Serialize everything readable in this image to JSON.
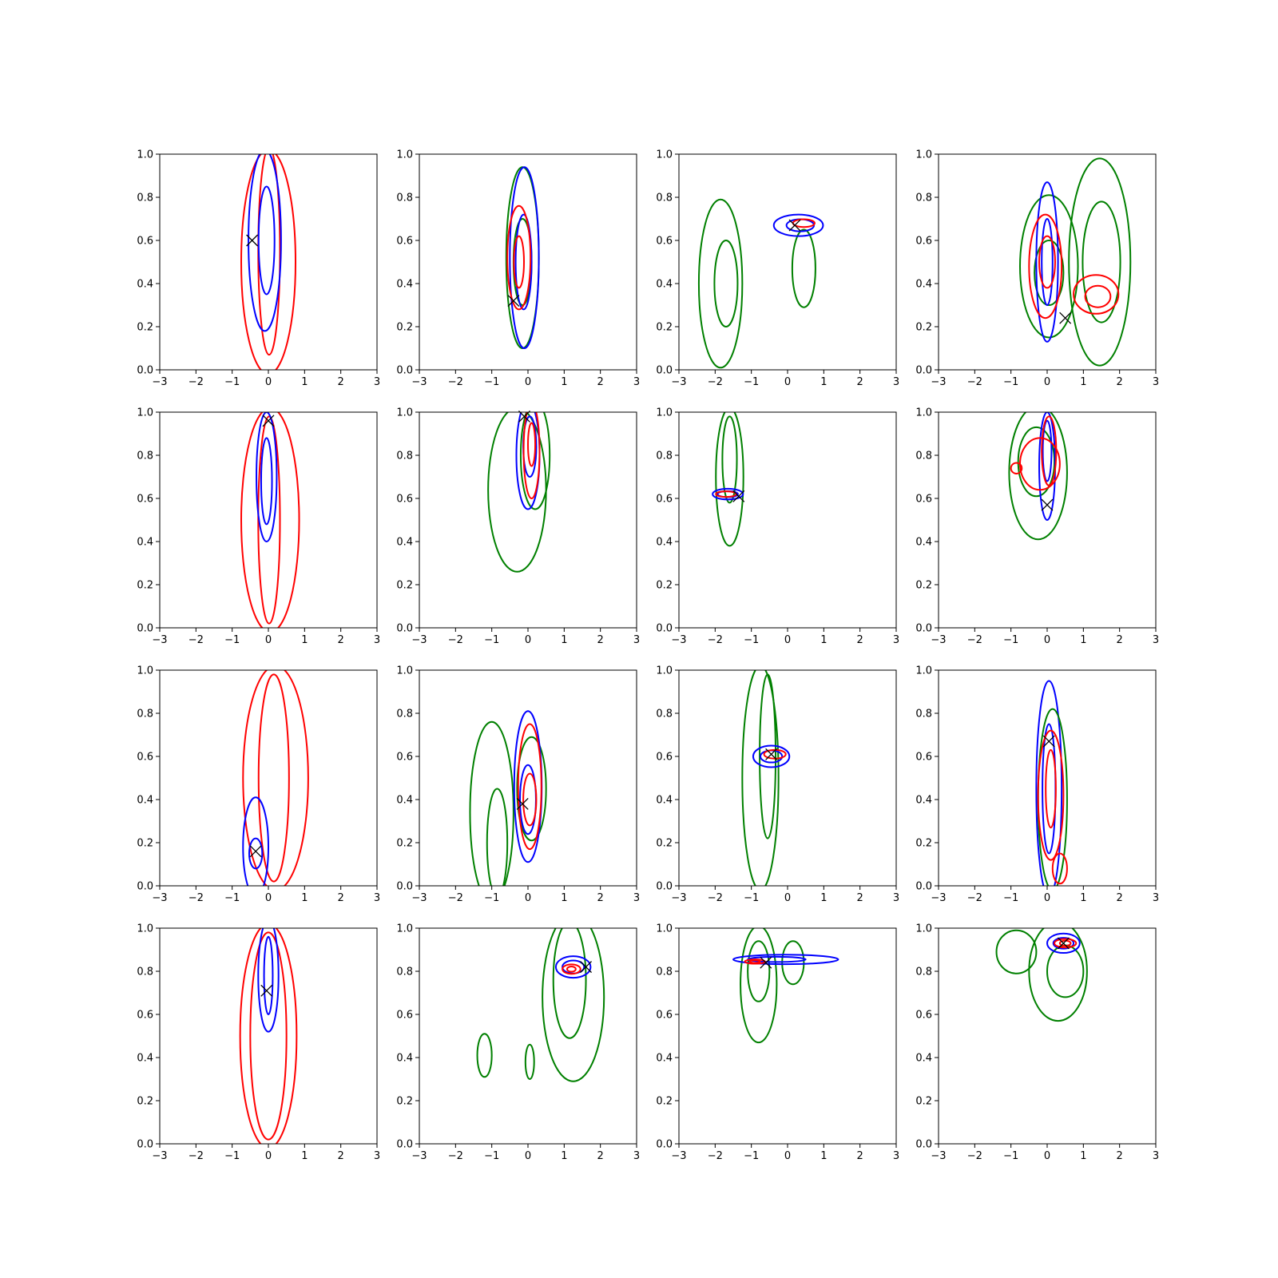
{
  "figure": {
    "rows": 4,
    "cols": 4,
    "colors": {
      "red": "#ff0000",
      "blue": "#0000ff",
      "green": "#008000",
      "marker": "#000000"
    }
  },
  "chart_data": {
    "type": "contour",
    "grid": "off",
    "legend": "none",
    "xlim": [
      -3,
      3
    ],
    "ylim": [
      0,
      1
    ],
    "xticks": [
      "−3",
      "−2",
      "−1",
      "0",
      "1",
      "2",
      "3"
    ],
    "yticks": [
      "0.0",
      "0.2",
      "0.4",
      "0.6",
      "0.8",
      "1.0"
    ],
    "panels": [
      {
        "row": 1,
        "col": 1,
        "marker": [
          -0.45,
          0.6
        ],
        "contours": [
          {
            "color": "red",
            "cx": 0.0,
            "cy": 0.5,
            "rx": 0.75,
            "ry": 0.52
          },
          {
            "color": "red",
            "cx": 0.02,
            "cy": 0.55,
            "rx": 0.3,
            "ry": 0.48
          },
          {
            "color": "blue",
            "cx": -0.1,
            "cy": 0.6,
            "rx": 0.45,
            "ry": 0.42
          },
          {
            "color": "blue",
            "cx": -0.05,
            "cy": 0.6,
            "rx": 0.22,
            "ry": 0.25
          }
        ]
      },
      {
        "row": 1,
        "col": 2,
        "marker": [
          -0.4,
          0.32
        ],
        "contours": [
          {
            "color": "green",
            "cx": -0.15,
            "cy": 0.52,
            "rx": 0.45,
            "ry": 0.42
          },
          {
            "color": "green",
            "cx": -0.15,
            "cy": 0.5,
            "rx": 0.25,
            "ry": 0.2
          },
          {
            "color": "blue",
            "cx": -0.1,
            "cy": 0.52,
            "rx": 0.4,
            "ry": 0.42
          },
          {
            "color": "blue",
            "cx": -0.12,
            "cy": 0.5,
            "rx": 0.22,
            "ry": 0.22
          },
          {
            "color": "red",
            "cx": -0.25,
            "cy": 0.52,
            "rx": 0.32,
            "ry": 0.24
          },
          {
            "color": "red",
            "cx": -0.25,
            "cy": 0.5,
            "rx": 0.14,
            "ry": 0.12
          }
        ]
      },
      {
        "row": 1,
        "col": 3,
        "marker": [
          0.2,
          0.67
        ],
        "contours": [
          {
            "color": "green",
            "cx": -1.85,
            "cy": 0.4,
            "rx": 0.6,
            "ry": 0.39
          },
          {
            "color": "green",
            "cx": -1.7,
            "cy": 0.4,
            "rx": 0.32,
            "ry": 0.2
          },
          {
            "color": "green",
            "cx": 0.45,
            "cy": 0.47,
            "rx": 0.32,
            "ry": 0.18
          },
          {
            "color": "blue",
            "cx": 0.3,
            "cy": 0.67,
            "rx": 0.68,
            "ry": 0.05
          },
          {
            "color": "blue",
            "cx": 0.35,
            "cy": 0.67,
            "rx": 0.38,
            "ry": 0.028
          },
          {
            "color": "red",
            "cx": 0.45,
            "cy": 0.68,
            "rx": 0.3,
            "ry": 0.018
          }
        ]
      },
      {
        "row": 1,
        "col": 4,
        "marker": [
          0.5,
          0.24
        ],
        "contours": [
          {
            "color": "green",
            "cx": 0.05,
            "cy": 0.48,
            "rx": 0.8,
            "ry": 0.33
          },
          {
            "color": "green",
            "cx": 0.05,
            "cy": 0.45,
            "rx": 0.4,
            "ry": 0.15
          },
          {
            "color": "green",
            "cx": 1.45,
            "cy": 0.5,
            "rx": 0.85,
            "ry": 0.48
          },
          {
            "color": "green",
            "cx": 1.5,
            "cy": 0.5,
            "rx": 0.52,
            "ry": 0.28
          },
          {
            "color": "blue",
            "cx": 0.0,
            "cy": 0.5,
            "rx": 0.3,
            "ry": 0.37
          },
          {
            "color": "blue",
            "cx": 0.0,
            "cy": 0.5,
            "rx": 0.15,
            "ry": 0.2
          },
          {
            "color": "red",
            "cx": -0.05,
            "cy": 0.48,
            "rx": 0.45,
            "ry": 0.24
          },
          {
            "color": "red",
            "cx": 0.0,
            "cy": 0.5,
            "rx": 0.22,
            "ry": 0.12
          },
          {
            "color": "red",
            "cx": 1.35,
            "cy": 0.35,
            "rx": 0.62,
            "ry": 0.09
          },
          {
            "color": "red",
            "cx": 1.4,
            "cy": 0.34,
            "rx": 0.35,
            "ry": 0.05
          }
        ]
      },
      {
        "row": 2,
        "col": 1,
        "marker": [
          0.0,
          0.96
        ],
        "contours": [
          {
            "color": "red",
            "cx": 0.05,
            "cy": 0.5,
            "rx": 0.8,
            "ry": 0.52
          },
          {
            "color": "red",
            "cx": 0.02,
            "cy": 0.5,
            "rx": 0.3,
            "ry": 0.48
          },
          {
            "color": "blue",
            "cx": -0.05,
            "cy": 0.7,
            "rx": 0.28,
            "ry": 0.3
          },
          {
            "color": "blue",
            "cx": -0.05,
            "cy": 0.68,
            "rx": 0.15,
            "ry": 0.2
          }
        ]
      },
      {
        "row": 2,
        "col": 2,
        "marker": [
          -0.1,
          0.98
        ],
        "contours": [
          {
            "color": "green",
            "cx": -0.3,
            "cy": 0.64,
            "rx": 0.8,
            "ry": 0.38
          },
          {
            "color": "green",
            "cx": 0.2,
            "cy": 0.8,
            "rx": 0.4,
            "ry": 0.25
          },
          {
            "color": "blue",
            "cx": 0.0,
            "cy": 0.8,
            "rx": 0.32,
            "ry": 0.25
          },
          {
            "color": "blue",
            "cx": 0.05,
            "cy": 0.84,
            "rx": 0.18,
            "ry": 0.14
          },
          {
            "color": "red",
            "cx": 0.1,
            "cy": 0.82,
            "rx": 0.22,
            "ry": 0.22
          },
          {
            "color": "red",
            "cx": 0.1,
            "cy": 0.85,
            "rx": 0.1,
            "ry": 0.1
          }
        ]
      },
      {
        "row": 2,
        "col": 3,
        "marker": [
          -1.35,
          0.61
        ],
        "contours": [
          {
            "color": "green",
            "cx": -1.6,
            "cy": 0.7,
            "rx": 0.38,
            "ry": 0.32
          },
          {
            "color": "green",
            "cx": -1.6,
            "cy": 0.78,
            "rx": 0.2,
            "ry": 0.2
          },
          {
            "color": "blue",
            "cx": -1.65,
            "cy": 0.62,
            "rx": 0.42,
            "ry": 0.025
          },
          {
            "color": "blue",
            "cx": -1.65,
            "cy": 0.62,
            "rx": 0.28,
            "ry": 0.014
          },
          {
            "color": "red",
            "cx": -1.7,
            "cy": 0.62,
            "rx": 0.28,
            "ry": 0.013
          }
        ]
      },
      {
        "row": 2,
        "col": 4,
        "marker": [
          0.0,
          0.57
        ],
        "contours": [
          {
            "color": "green",
            "cx": -0.25,
            "cy": 0.72,
            "rx": 0.8,
            "ry": 0.31
          },
          {
            "color": "green",
            "cx": -0.3,
            "cy": 0.77,
            "rx": 0.5,
            "ry": 0.16
          },
          {
            "color": "blue",
            "cx": 0.0,
            "cy": 0.75,
            "rx": 0.22,
            "ry": 0.25
          },
          {
            "color": "blue",
            "cx": 0.0,
            "cy": 0.82,
            "rx": 0.12,
            "ry": 0.14
          },
          {
            "color": "red",
            "cx": -0.2,
            "cy": 0.76,
            "rx": 0.55,
            "ry": 0.12
          },
          {
            "color": "red",
            "cx": 0.05,
            "cy": 0.82,
            "rx": 0.2,
            "ry": 0.16
          },
          {
            "color": "red",
            "cx": -0.85,
            "cy": 0.74,
            "rx": 0.15,
            "ry": 0.025
          }
        ]
      },
      {
        "row": 3,
        "col": 1,
        "marker": [
          -0.35,
          0.16
        ],
        "contours": [
          {
            "color": "red",
            "cx": 0.2,
            "cy": 0.5,
            "rx": 0.9,
            "ry": 0.52
          },
          {
            "color": "red",
            "cx": 0.15,
            "cy": 0.5,
            "rx": 0.42,
            "ry": 0.48
          },
          {
            "color": "blue",
            "cx": -0.35,
            "cy": 0.18,
            "rx": 0.35,
            "ry": 0.23
          },
          {
            "color": "blue",
            "cx": -0.35,
            "cy": 0.15,
            "rx": 0.18,
            "ry": 0.07
          }
        ]
      },
      {
        "row": 3,
        "col": 2,
        "marker": [
          -0.15,
          0.38
        ],
        "contours": [
          {
            "color": "green",
            "cx": -1.0,
            "cy": 0.34,
            "rx": 0.6,
            "ry": 0.42
          },
          {
            "color": "green",
            "cx": -0.85,
            "cy": 0.2,
            "rx": 0.28,
            "ry": 0.25
          },
          {
            "color": "green",
            "cx": 0.1,
            "cy": 0.45,
            "rx": 0.4,
            "ry": 0.24
          },
          {
            "color": "blue",
            "cx": 0.0,
            "cy": 0.46,
            "rx": 0.38,
            "ry": 0.35
          },
          {
            "color": "blue",
            "cx": 0.0,
            "cy": 0.4,
            "rx": 0.22,
            "ry": 0.16
          },
          {
            "color": "red",
            "cx": 0.05,
            "cy": 0.46,
            "rx": 0.32,
            "ry": 0.29
          },
          {
            "color": "red",
            "cx": 0.05,
            "cy": 0.4,
            "rx": 0.18,
            "ry": 0.12
          }
        ]
      },
      {
        "row": 3,
        "col": 3,
        "marker": [
          -0.45,
          0.61
        ],
        "contours": [
          {
            "color": "green",
            "cx": -0.75,
            "cy": 0.5,
            "rx": 0.5,
            "ry": 0.52
          },
          {
            "color": "green",
            "cx": -0.55,
            "cy": 0.6,
            "rx": 0.22,
            "ry": 0.38
          },
          {
            "color": "blue",
            "cx": -0.45,
            "cy": 0.6,
            "rx": 0.5,
            "ry": 0.05
          },
          {
            "color": "blue",
            "cx": -0.45,
            "cy": 0.6,
            "rx": 0.3,
            "ry": 0.028
          },
          {
            "color": "red",
            "cx": -0.35,
            "cy": 0.61,
            "rx": 0.3,
            "ry": 0.02
          }
        ]
      },
      {
        "row": 3,
        "col": 4,
        "marker": [
          0.05,
          0.67
        ],
        "contours": [
          {
            "color": "blue",
            "cx": 0.05,
            "cy": 0.45,
            "rx": 0.35,
            "ry": 0.5
          },
          {
            "color": "blue",
            "cx": 0.05,
            "cy": 0.45,
            "rx": 0.18,
            "ry": 0.3
          },
          {
            "color": "green",
            "cx": 0.15,
            "cy": 0.4,
            "rx": 0.4,
            "ry": 0.42
          },
          {
            "color": "red",
            "cx": 0.1,
            "cy": 0.42,
            "rx": 0.35,
            "ry": 0.3
          },
          {
            "color": "red",
            "cx": 0.1,
            "cy": 0.45,
            "rx": 0.14,
            "ry": 0.18
          },
          {
            "color": "red",
            "cx": 0.35,
            "cy": 0.08,
            "rx": 0.2,
            "ry": 0.07
          }
        ]
      },
      {
        "row": 4,
        "col": 1,
        "marker": [
          -0.05,
          0.71
        ],
        "contours": [
          {
            "color": "red",
            "cx": 0.0,
            "cy": 0.5,
            "rx": 0.78,
            "ry": 0.52
          },
          {
            "color": "red",
            "cx": 0.0,
            "cy": 0.5,
            "rx": 0.5,
            "ry": 0.48
          },
          {
            "color": "blue",
            "cx": 0.0,
            "cy": 0.78,
            "rx": 0.28,
            "ry": 0.26
          },
          {
            "color": "blue",
            "cx": 0.0,
            "cy": 0.78,
            "rx": 0.12,
            "ry": 0.18
          }
        ]
      },
      {
        "row": 4,
        "col": 2,
        "marker": [
          1.6,
          0.82
        ],
        "contours": [
          {
            "color": "green",
            "cx": 1.25,
            "cy": 0.68,
            "rx": 0.85,
            "ry": 0.39
          },
          {
            "color": "green",
            "cx": 1.15,
            "cy": 0.76,
            "rx": 0.45,
            "ry": 0.27
          },
          {
            "color": "green",
            "cx": -1.2,
            "cy": 0.41,
            "rx": 0.2,
            "ry": 0.1
          },
          {
            "color": "green",
            "cx": 0.05,
            "cy": 0.38,
            "rx": 0.12,
            "ry": 0.08
          },
          {
            "color": "blue",
            "cx": 1.25,
            "cy": 0.82,
            "rx": 0.48,
            "ry": 0.05
          },
          {
            "color": "blue",
            "cx": 1.25,
            "cy": 0.82,
            "rx": 0.3,
            "ry": 0.03
          },
          {
            "color": "red",
            "cx": 1.2,
            "cy": 0.81,
            "rx": 0.25,
            "ry": 0.022
          },
          {
            "color": "red",
            "cx": 1.2,
            "cy": 0.81,
            "rx": 0.12,
            "ry": 0.012
          }
        ]
      },
      {
        "row": 4,
        "col": 3,
        "marker": [
          -0.6,
          0.84
        ],
        "contours": [
          {
            "color": "green",
            "cx": -0.8,
            "cy": 0.74,
            "rx": 0.5,
            "ry": 0.27
          },
          {
            "color": "green",
            "cx": -0.8,
            "cy": 0.8,
            "rx": 0.3,
            "ry": 0.14
          },
          {
            "color": "green",
            "cx": 0.15,
            "cy": 0.84,
            "rx": 0.3,
            "ry": 0.1
          },
          {
            "color": "blue",
            "cx": -0.05,
            "cy": 0.855,
            "rx": 1.45,
            "ry": 0.022
          },
          {
            "color": "blue",
            "cx": -0.3,
            "cy": 0.855,
            "rx": 0.8,
            "ry": 0.012
          },
          {
            "color": "red",
            "cx": -0.9,
            "cy": 0.845,
            "rx": 0.28,
            "ry": 0.01
          },
          {
            "color": "red",
            "cx": -0.9,
            "cy": 0.845,
            "rx": 0.14,
            "ry": 0.006
          }
        ]
      },
      {
        "row": 4,
        "col": 4,
        "marker": [
          0.45,
          0.93
        ],
        "contours": [
          {
            "color": "green",
            "cx": 0.3,
            "cy": 0.8,
            "rx": 0.8,
            "ry": 0.23
          },
          {
            "color": "green",
            "cx": 0.5,
            "cy": 0.8,
            "rx": 0.5,
            "ry": 0.12
          },
          {
            "color": "green",
            "cx": -0.85,
            "cy": 0.89,
            "rx": 0.55,
            "ry": 0.1
          },
          {
            "color": "blue",
            "cx": 0.45,
            "cy": 0.93,
            "rx": 0.45,
            "ry": 0.045
          },
          {
            "color": "blue",
            "cx": 0.45,
            "cy": 0.93,
            "rx": 0.28,
            "ry": 0.025
          },
          {
            "color": "red",
            "cx": 0.5,
            "cy": 0.93,
            "rx": 0.3,
            "ry": 0.02
          },
          {
            "color": "red",
            "cx": 0.5,
            "cy": 0.93,
            "rx": 0.15,
            "ry": 0.012
          }
        ]
      }
    ]
  }
}
